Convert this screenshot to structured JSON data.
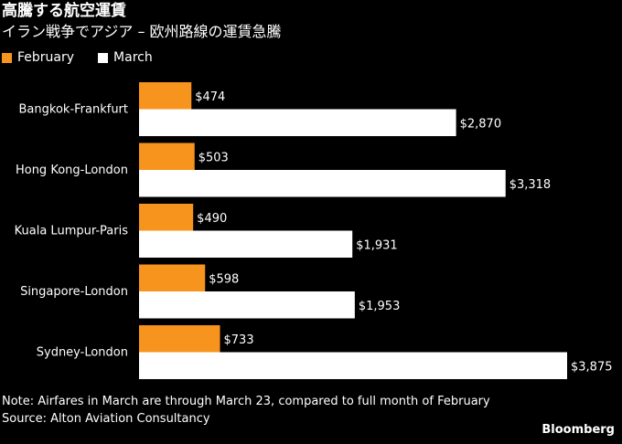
{
  "chart_data": {
    "type": "bar",
    "orientation": "horizontal",
    "title": "高騰する航空運賃",
    "subtitle": "イラン戦争でアジア – 欧州路線の運賃急騰",
    "categories": [
      "Bangkok-Frankfurt",
      "Hong Kong-London",
      "Kuala Lumpur-Paris",
      "Singapore-London",
      "Sydney-London"
    ],
    "series": [
      {
        "name": "February",
        "color": "#f7941d",
        "values": [
          474,
          503,
          490,
          598,
          733
        ],
        "labels": [
          "$474",
          "$503",
          "$490",
          "$598",
          "$733"
        ]
      },
      {
        "name": "March",
        "color": "#ffffff",
        "values": [
          2870,
          3318,
          1931,
          1953,
          3875
        ],
        "labels": [
          "$2,870",
          "$3,318",
          "$1,931",
          "$1,953",
          "$3,875"
        ]
      }
    ],
    "xlim": [
      0,
      3875
    ],
    "grid": false,
    "legend_position": "top-left"
  },
  "footer": {
    "note": "Note: Airfares in March are through March 23, compared to full month of February",
    "source": "Source: Alton Aviation Consultancy",
    "brand": "Bloomberg"
  }
}
